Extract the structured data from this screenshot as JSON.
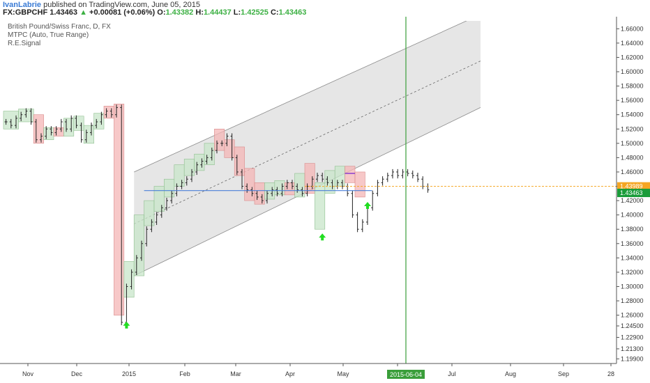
{
  "header": {
    "author": "IvanLabrie",
    "published_text": "published on TradingView.com, June 05, 2015",
    "symbol": "FX:GBPCHF",
    "last": "1.43463",
    "change": "+0.00081 (+0.06%)",
    "o_label": "O:",
    "o": "1.43382",
    "h_label": "H:",
    "h": "1.44437",
    "l_label": "L:",
    "l": "1.42525",
    "c_label": "C:",
    "c": "1.43463"
  },
  "legend": {
    "title": "British Pound/Swiss Franc, D, FX",
    "indicator1": "MTPC (Auto, True Range)",
    "indicator2": "R.E.Signal"
  },
  "colors": {
    "bull_box": "#c8e6c9",
    "bear_box": "#f4b6b6",
    "channel_fill": "#e6e6e6",
    "channel_line": "#8a8a8a",
    "hline": "#4a7fd8",
    "vline": "#3a9e3a",
    "signal_arrow": "#22dd22",
    "orange": "#f5a623",
    "last_price_bg": "#1a9c3a"
  },
  "chart_data": {
    "type": "candlestick",
    "title": "British Pound/Swiss Franc, D, FX",
    "y_ticks": [
      "1.66000",
      "1.64000",
      "1.62000",
      "1.60000",
      "1.58000",
      "1.56000",
      "1.54000",
      "1.52000",
      "1.50000",
      "1.48000",
      "1.46000",
      "1.44000",
      "1.42000",
      "1.40000",
      "1.38000",
      "1.36000",
      "1.34000",
      "1.32000",
      "1.30000",
      "1.28000",
      "1.26000",
      "1.24500",
      "1.22900",
      "1.21300",
      "1.19900"
    ],
    "x_ticks": [
      "Nov",
      "Dec",
      "2015",
      "Feb",
      "Mar",
      "Apr",
      "May",
      "Jun",
      "Jul",
      "Aug",
      "Sep",
      "28"
    ],
    "ylim": [
      1.1925,
      1.671
    ],
    "price_labels": {
      "orange": "1.43989",
      "last": "1.43463"
    },
    "cursor_date": "2015-06-04",
    "series": [
      {
        "values": [
          1.53,
          1.525,
          1.535,
          1.54,
          1.545,
          1.53,
          1.505,
          1.51,
          1.52,
          1.515,
          1.52,
          1.53,
          1.52,
          1.535,
          1.525,
          1.505,
          1.515,
          1.525,
          1.53,
          1.54,
          1.545,
          1.54,
          1.55,
          1.25,
          1.3,
          1.32,
          1.34,
          1.36,
          1.38,
          1.39,
          1.4,
          1.41,
          1.42,
          1.43,
          1.44,
          1.445,
          1.45,
          1.46,
          1.47,
          1.475,
          1.48,
          1.49,
          1.5,
          1.5,
          1.51,
          1.48,
          1.46,
          1.44,
          1.435,
          1.43,
          1.425,
          1.42,
          1.43,
          1.435,
          1.43,
          1.44,
          1.445,
          1.44,
          1.435,
          1.43,
          1.44,
          1.45,
          1.455,
          1.45,
          1.445,
          1.44,
          1.445,
          1.44,
          1.43,
          1.4,
          1.38,
          1.39,
          1.41,
          1.43,
          1.445,
          1.45,
          1.455,
          1.46,
          1.455,
          1.46,
          1.458,
          1.455,
          1.45,
          1.44,
          1.435
        ]
      }
    ],
    "boxes": [
      {
        "x0": 0,
        "x1": 3,
        "top": 1.545,
        "bottom": 1.52,
        "dir": "bull"
      },
      {
        "x0": 3,
        "x1": 6,
        "top": 1.548,
        "bottom": 1.53,
        "dir": "bull"
      },
      {
        "x0": 6,
        "x1": 8,
        "top": 1.54,
        "bottom": 1.5,
        "dir": "bear"
      },
      {
        "x0": 8,
        "x1": 10,
        "top": 1.522,
        "bottom": 1.505,
        "dir": "bull"
      },
      {
        "x0": 10,
        "x1": 12,
        "top": 1.522,
        "bottom": 1.51,
        "dir": "bear"
      },
      {
        "x0": 12,
        "x1": 14,
        "top": 1.535,
        "bottom": 1.51,
        "dir": "bull"
      },
      {
        "x0": 14,
        "x1": 16,
        "top": 1.538,
        "bottom": 1.518,
        "dir": "bull"
      },
      {
        "x0": 16,
        "x1": 18,
        "top": 1.525,
        "bottom": 1.5,
        "dir": "bull"
      },
      {
        "x0": 18,
        "x1": 20,
        "top": 1.542,
        "bottom": 1.52,
        "dir": "bull"
      },
      {
        "x0": 20,
        "x1": 22,
        "top": 1.552,
        "bottom": 1.535,
        "dir": "bear"
      },
      {
        "x0": 22,
        "x1": 24,
        "top": 1.555,
        "bottom": 1.26,
        "dir": "bear"
      },
      {
        "x0": 24,
        "x1": 26,
        "top": 1.335,
        "bottom": 1.285,
        "dir": "bull"
      },
      {
        "x0": 26,
        "x1": 28,
        "top": 1.4,
        "bottom": 1.315,
        "dir": "bull"
      },
      {
        "x0": 28,
        "x1": 30,
        "top": 1.42,
        "bottom": 1.385,
        "dir": "bull"
      },
      {
        "x0": 30,
        "x1": 32,
        "top": 1.44,
        "bottom": 1.405,
        "dir": "bull"
      },
      {
        "x0": 32,
        "x1": 34,
        "top": 1.45,
        "bottom": 1.425,
        "dir": "bull"
      },
      {
        "x0": 34,
        "x1": 36,
        "top": 1.47,
        "bottom": 1.44,
        "dir": "bull"
      },
      {
        "x0": 36,
        "x1": 38,
        "top": 1.478,
        "bottom": 1.455,
        "dir": "bull"
      },
      {
        "x0": 38,
        "x1": 40,
        "top": 1.485,
        "bottom": 1.462,
        "dir": "bull"
      },
      {
        "x0": 40,
        "x1": 42,
        "top": 1.5,
        "bottom": 1.47,
        "dir": "bull"
      },
      {
        "x0": 42,
        "x1": 44,
        "top": 1.52,
        "bottom": 1.49,
        "dir": "bear"
      },
      {
        "x0": 44,
        "x1": 46,
        "top": 1.505,
        "bottom": 1.48,
        "dir": "bear"
      },
      {
        "x0": 46,
        "x1": 48,
        "top": 1.495,
        "bottom": 1.455,
        "dir": "bear"
      },
      {
        "x0": 48,
        "x1": 50,
        "top": 1.465,
        "bottom": 1.42,
        "dir": "bear"
      },
      {
        "x0": 50,
        "x1": 52,
        "top": 1.445,
        "bottom": 1.415,
        "dir": "bear"
      },
      {
        "x0": 52,
        "x1": 54,
        "top": 1.445,
        "bottom": 1.422,
        "dir": "bull"
      },
      {
        "x0": 54,
        "x1": 56,
        "top": 1.448,
        "bottom": 1.428,
        "dir": "bull"
      },
      {
        "x0": 56,
        "x1": 58,
        "top": 1.445,
        "bottom": 1.428,
        "dir": "bear"
      },
      {
        "x0": 58,
        "x1": 60,
        "top": 1.458,
        "bottom": 1.425,
        "dir": "bull"
      },
      {
        "x0": 60,
        "x1": 62,
        "top": 1.472,
        "bottom": 1.43,
        "dir": "bear"
      },
      {
        "x0": 62,
        "x1": 64,
        "top": 1.445,
        "bottom": 1.38,
        "dir": "bull"
      },
      {
        "x0": 64,
        "x1": 66,
        "top": 1.462,
        "bottom": 1.43,
        "dir": "bull"
      },
      {
        "x0": 66,
        "x1": 68,
        "top": 1.468,
        "bottom": 1.44,
        "dir": "bull"
      },
      {
        "x0": 68,
        "x1": 70,
        "top": 1.468,
        "bottom": 1.445,
        "dir": "bear"
      },
      {
        "x0": 70,
        "x1": 72,
        "top": 1.46,
        "bottom": 1.425,
        "dir": "bear"
      }
    ],
    "channel": {
      "x0": 26,
      "x1": 95,
      "upper0": 1.46,
      "upper1": 1.68,
      "lower0": 1.315,
      "lower1": 1.55
    },
    "hline": {
      "value": 1.434,
      "x0": 28,
      "x1": 72
    },
    "signals": [
      {
        "x": 24,
        "value": 1.255
      },
      {
        "x": 63,
        "value": 1.378
      },
      {
        "x": 72,
        "value": 1.422
      }
    ]
  }
}
